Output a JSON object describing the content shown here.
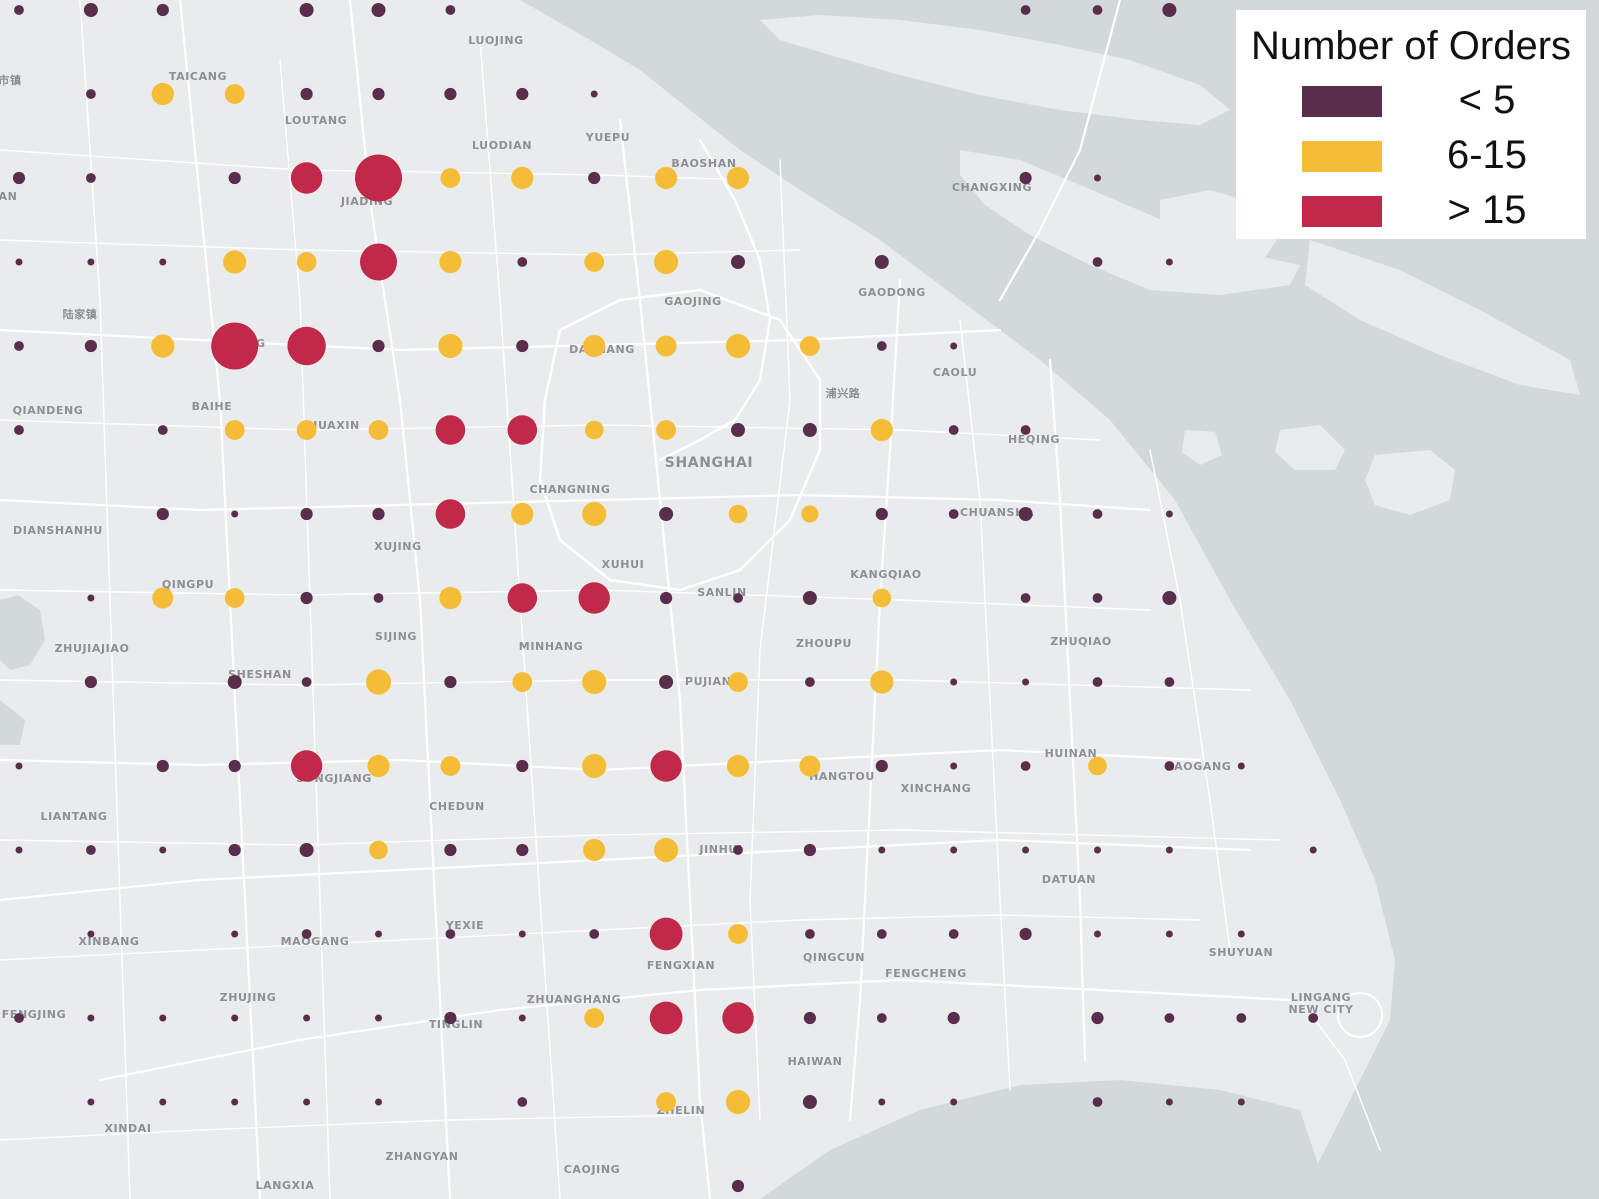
{
  "colors": {
    "land": "#e9ecec",
    "water": "#d3d9db",
    "road": "#ffffff",
    "label": "#8c9094",
    "low": "#5a2d4d",
    "mid": "#f5bd37",
    "high": "#c0294a"
  },
  "legend": {
    "title": "Number of Orders",
    "items": [
      {
        "label": "< 5",
        "color": "#5a2d4d"
      },
      {
        "label": "6-15",
        "color": "#f5bd37"
      },
      {
        "label": "> 15",
        "color": "#c0294a"
      }
    ]
  },
  "places": [
    "LUOJING",
    "TAICANG",
    "LOUTANG",
    "LUODIAN",
    "YUEPU",
    "BAOSHAN",
    "JIADING",
    "CHANGXING",
    "GAOJING",
    "GAODONG",
    "陆家镇",
    "ANTING",
    "DACHANG",
    "CAOLU",
    "浦兴路",
    "QIANDENG",
    "BAIHE",
    "HUAXIN",
    "SHANGHAI",
    "HEQING",
    "CHANGNING",
    "CHUANSHA",
    "DIANSHANHU",
    "XUJING",
    "XUHUI",
    "QINGPU",
    "SANLIN",
    "KANGQIAO",
    "SIJING",
    "MINHANG",
    "ZHUJIAJIAO",
    "ZHOUPU",
    "ZHUQIAO",
    "SHESHAN",
    "PUJIANG",
    "HUINAN",
    "LAOGANG",
    "SONGJIANG",
    "HANGTOU",
    "XINCHANG",
    "CHEDUN",
    "LIANTANG",
    "JINHUI",
    "DATUAN",
    "YEXIE",
    "XINBANG",
    "MAOGANG",
    "QINGCUN",
    "FENGXIAN",
    "FENGCHENG",
    "SHUYUAN",
    "ZHUJING",
    "ZHUANGHANG",
    "LINGANG",
    "NEW CITY",
    "FENGJING",
    "TINGLIN",
    "HAIWAN",
    "ZHELIN",
    "XINDAI",
    "ZHANGYAN",
    "CAOJING",
    "LANGXIA",
    "市镇",
    "AN"
  ],
  "order_grid": [
    {
      "col": 0,
      "row": 0,
      "level": "low",
      "orders": 2
    },
    {
      "col": 1,
      "row": 0,
      "level": "low",
      "orders": 4
    },
    {
      "col": 2,
      "row": 0,
      "level": "low",
      "orders": 3
    },
    {
      "col": 4,
      "row": 0,
      "level": "low",
      "orders": 4
    },
    {
      "col": 5,
      "row": 0,
      "level": "low",
      "orders": 4
    },
    {
      "col": 6,
      "row": 0,
      "level": "low",
      "orders": 2
    },
    {
      "col": 14,
      "row": 0,
      "level": "low",
      "orders": 2
    },
    {
      "col": 15,
      "row": 0,
      "level": "low",
      "orders": 2
    },
    {
      "col": 16,
      "row": 0,
      "level": "low",
      "orders": 4
    },
    {
      "col": 1,
      "row": 1,
      "level": "low",
      "orders": 2
    },
    {
      "col": 2,
      "row": 1,
      "level": "mid",
      "orders": 10
    },
    {
      "col": 3,
      "row": 1,
      "level": "mid",
      "orders": 8
    },
    {
      "col": 4,
      "row": 1,
      "level": "low",
      "orders": 3
    },
    {
      "col": 5,
      "row": 1,
      "level": "low",
      "orders": 3
    },
    {
      "col": 6,
      "row": 1,
      "level": "low",
      "orders": 3
    },
    {
      "col": 7,
      "row": 1,
      "level": "low",
      "orders": 3
    },
    {
      "col": 8,
      "row": 1,
      "level": "low",
      "orders": 1
    },
    {
      "col": 0,
      "row": 2,
      "level": "low",
      "orders": 3
    },
    {
      "col": 1,
      "row": 2,
      "level": "low",
      "orders": 2
    },
    {
      "col": 3,
      "row": 2,
      "level": "low",
      "orders": 3
    },
    {
      "col": 4,
      "row": 2,
      "level": "high",
      "orders": 20
    },
    {
      "col": 5,
      "row": 2,
      "level": "high",
      "orders": 45
    },
    {
      "col": 6,
      "row": 2,
      "level": "mid",
      "orders": 8
    },
    {
      "col": 7,
      "row": 2,
      "level": "mid",
      "orders": 10
    },
    {
      "col": 8,
      "row": 2,
      "level": "low",
      "orders": 3
    },
    {
      "col": 9,
      "row": 2,
      "level": "mid",
      "orders": 10
    },
    {
      "col": 10,
      "row": 2,
      "level": "mid",
      "orders": 10
    },
    {
      "col": 14,
      "row": 2,
      "level": "low",
      "orders": 3
    },
    {
      "col": 15,
      "row": 2,
      "level": "low",
      "orders": 1
    },
    {
      "col": 0,
      "row": 3,
      "level": "low",
      "orders": 1
    },
    {
      "col": 1,
      "row": 3,
      "level": "low",
      "orders": 1
    },
    {
      "col": 2,
      "row": 3,
      "level": "low",
      "orders": 1
    },
    {
      "col": 3,
      "row": 3,
      "level": "mid",
      "orders": 11
    },
    {
      "col": 4,
      "row": 3,
      "level": "mid",
      "orders": 8
    },
    {
      "col": 5,
      "row": 3,
      "level": "high",
      "orders": 28
    },
    {
      "col": 6,
      "row": 3,
      "level": "mid",
      "orders": 10
    },
    {
      "col": 7,
      "row": 3,
      "level": "low",
      "orders": 2
    },
    {
      "col": 8,
      "row": 3,
      "level": "mid",
      "orders": 8
    },
    {
      "col": 9,
      "row": 3,
      "level": "mid",
      "orders": 12
    },
    {
      "col": 10,
      "row": 3,
      "level": "low",
      "orders": 4
    },
    {
      "col": 12,
      "row": 3,
      "level": "low",
      "orders": 4
    },
    {
      "col": 15,
      "row": 3,
      "level": "low",
      "orders": 2
    },
    {
      "col": 16,
      "row": 3,
      "level": "low",
      "orders": 1
    },
    {
      "col": 0,
      "row": 4,
      "level": "low",
      "orders": 2
    },
    {
      "col": 1,
      "row": 4,
      "level": "low",
      "orders": 3
    },
    {
      "col": 2,
      "row": 4,
      "level": "mid",
      "orders": 11
    },
    {
      "col": 3,
      "row": 4,
      "level": "high",
      "orders": 45
    },
    {
      "col": 4,
      "row": 4,
      "level": "high",
      "orders": 30
    },
    {
      "col": 5,
      "row": 4,
      "level": "low",
      "orders": 3
    },
    {
      "col": 6,
      "row": 4,
      "level": "mid",
      "orders": 12
    },
    {
      "col": 7,
      "row": 4,
      "level": "low",
      "orders": 3
    },
    {
      "col": 8,
      "row": 4,
      "level": "mid",
      "orders": 10
    },
    {
      "col": 9,
      "row": 4,
      "level": "mid",
      "orders": 9
    },
    {
      "col": 10,
      "row": 4,
      "level": "mid",
      "orders": 12
    },
    {
      "col": 11,
      "row": 4,
      "level": "mid",
      "orders": 8
    },
    {
      "col": 12,
      "row": 4,
      "level": "low",
      "orders": 2
    },
    {
      "col": 13,
      "row": 4,
      "level": "low",
      "orders": 1
    },
    {
      "col": 0,
      "row": 5,
      "level": "low",
      "orders": 2
    },
    {
      "col": 2,
      "row": 5,
      "level": "low",
      "orders": 2
    },
    {
      "col": 3,
      "row": 5,
      "level": "mid",
      "orders": 8
    },
    {
      "col": 4,
      "row": 5,
      "level": "mid",
      "orders": 8
    },
    {
      "col": 5,
      "row": 5,
      "level": "mid",
      "orders": 8
    },
    {
      "col": 6,
      "row": 5,
      "level": "high",
      "orders": 18
    },
    {
      "col": 7,
      "row": 5,
      "level": "high",
      "orders": 18
    },
    {
      "col": 8,
      "row": 5,
      "level": "mid",
      "orders": 7
    },
    {
      "col": 9,
      "row": 5,
      "level": "mid",
      "orders": 8
    },
    {
      "col": 10,
      "row": 5,
      "level": "low",
      "orders": 4
    },
    {
      "col": 11,
      "row": 5,
      "level": "low",
      "orders": 4
    },
    {
      "col": 12,
      "row": 5,
      "level": "mid",
      "orders": 10
    },
    {
      "col": 13,
      "row": 5,
      "level": "low",
      "orders": 2
    },
    {
      "col": 14,
      "row": 5,
      "level": "low",
      "orders": 2
    },
    {
      "col": 2,
      "row": 6,
      "level": "low",
      "orders": 3
    },
    {
      "col": 3,
      "row": 6,
      "level": "low",
      "orders": 1
    },
    {
      "col": 4,
      "row": 6,
      "level": "low",
      "orders": 3
    },
    {
      "col": 5,
      "row": 6,
      "level": "low",
      "orders": 3
    },
    {
      "col": 6,
      "row": 6,
      "level": "high",
      "orders": 18
    },
    {
      "col": 7,
      "row": 6,
      "level": "mid",
      "orders": 10
    },
    {
      "col": 8,
      "row": 6,
      "level": "mid",
      "orders": 12
    },
    {
      "col": 9,
      "row": 6,
      "level": "low",
      "orders": 4
    },
    {
      "col": 10,
      "row": 6,
      "level": "mid",
      "orders": 7
    },
    {
      "col": 11,
      "row": 6,
      "level": "mid",
      "orders": 6
    },
    {
      "col": 12,
      "row": 6,
      "level": "low",
      "orders": 3
    },
    {
      "col": 13,
      "row": 6,
      "level": "low",
      "orders": 2
    },
    {
      "col": 14,
      "row": 6,
      "level": "low",
      "orders": 4
    },
    {
      "col": 15,
      "row": 6,
      "level": "low",
      "orders": 2
    },
    {
      "col": 16,
      "row": 6,
      "level": "low",
      "orders": 1
    },
    {
      "col": 1,
      "row": 7,
      "level": "low",
      "orders": 1
    },
    {
      "col": 2,
      "row": 7,
      "level": "mid",
      "orders": 9
    },
    {
      "col": 3,
      "row": 7,
      "level": "mid",
      "orders": 8
    },
    {
      "col": 4,
      "row": 7,
      "level": "low",
      "orders": 3
    },
    {
      "col": 5,
      "row": 7,
      "level": "low",
      "orders": 2
    },
    {
      "col": 6,
      "row": 7,
      "level": "mid",
      "orders": 10
    },
    {
      "col": 7,
      "row": 7,
      "level": "high",
      "orders": 18
    },
    {
      "col": 8,
      "row": 7,
      "level": "high",
      "orders": 20
    },
    {
      "col": 9,
      "row": 7,
      "level": "low",
      "orders": 3
    },
    {
      "col": 10,
      "row": 7,
      "level": "low",
      "orders": 2
    },
    {
      "col": 11,
      "row": 7,
      "level": "low",
      "orders": 4
    },
    {
      "col": 12,
      "row": 7,
      "level": "mid",
      "orders": 7
    },
    {
      "col": 14,
      "row": 7,
      "level": "low",
      "orders": 2
    },
    {
      "col": 15,
      "row": 7,
      "level": "low",
      "orders": 2
    },
    {
      "col": 16,
      "row": 7,
      "level": "low",
      "orders": 4
    },
    {
      "col": 1,
      "row": 8,
      "level": "low",
      "orders": 3
    },
    {
      "col": 3,
      "row": 8,
      "level": "low",
      "orders": 4
    },
    {
      "col": 4,
      "row": 8,
      "level": "low",
      "orders": 2
    },
    {
      "col": 5,
      "row": 8,
      "level": "mid",
      "orders": 13
    },
    {
      "col": 6,
      "row": 8,
      "level": "low",
      "orders": 3
    },
    {
      "col": 7,
      "row": 8,
      "level": "mid",
      "orders": 8
    },
    {
      "col": 8,
      "row": 8,
      "level": "mid",
      "orders": 12
    },
    {
      "col": 9,
      "row": 8,
      "level": "low",
      "orders": 4
    },
    {
      "col": 10,
      "row": 8,
      "level": "mid",
      "orders": 8
    },
    {
      "col": 11,
      "row": 8,
      "level": "low",
      "orders": 2
    },
    {
      "col": 12,
      "row": 8,
      "level": "mid",
      "orders": 11
    },
    {
      "col": 13,
      "row": 8,
      "level": "low",
      "orders": 1
    },
    {
      "col": 14,
      "row": 8,
      "level": "low",
      "orders": 1
    },
    {
      "col": 15,
      "row": 8,
      "level": "low",
      "orders": 2
    },
    {
      "col": 16,
      "row": 8,
      "level": "low",
      "orders": 2
    },
    {
      "col": 0,
      "row": 9,
      "level": "low",
      "orders": 1
    },
    {
      "col": 2,
      "row": 9,
      "level": "low",
      "orders": 3
    },
    {
      "col": 3,
      "row": 9,
      "level": "low",
      "orders": 3
    },
    {
      "col": 4,
      "row": 9,
      "level": "high",
      "orders": 20
    },
    {
      "col": 5,
      "row": 9,
      "level": "mid",
      "orders": 10
    },
    {
      "col": 6,
      "row": 9,
      "level": "mid",
      "orders": 8
    },
    {
      "col": 7,
      "row": 9,
      "level": "low",
      "orders": 3
    },
    {
      "col": 8,
      "row": 9,
      "level": "mid",
      "orders": 12
    },
    {
      "col": 9,
      "row": 9,
      "level": "high",
      "orders": 20
    },
    {
      "col": 10,
      "row": 9,
      "level": "mid",
      "orders": 10
    },
    {
      "col": 11,
      "row": 9,
      "level": "mid",
      "orders": 9
    },
    {
      "col": 12,
      "row": 9,
      "level": "low",
      "orders": 3
    },
    {
      "col": 13,
      "row": 9,
      "level": "low",
      "orders": 1
    },
    {
      "col": 14,
      "row": 9,
      "level": "low",
      "orders": 2
    },
    {
      "col": 15,
      "row": 9,
      "level": "mid",
      "orders": 7
    },
    {
      "col": 16,
      "row": 9,
      "level": "low",
      "orders": 2
    },
    {
      "col": 17,
      "row": 9,
      "level": "low",
      "orders": 1
    },
    {
      "col": 0,
      "row": 10,
      "level": "low",
      "orders": 1
    },
    {
      "col": 1,
      "row": 10,
      "level": "low",
      "orders": 2
    },
    {
      "col": 2,
      "row": 10,
      "level": "low",
      "orders": 1
    },
    {
      "col": 3,
      "row": 10,
      "level": "low",
      "orders": 3
    },
    {
      "col": 4,
      "row": 10,
      "level": "low",
      "orders": 4
    },
    {
      "col": 5,
      "row": 10,
      "level": "mid",
      "orders": 7
    },
    {
      "col": 6,
      "row": 10,
      "level": "low",
      "orders": 3
    },
    {
      "col": 7,
      "row": 10,
      "level": "low",
      "orders": 3
    },
    {
      "col": 8,
      "row": 10,
      "level": "mid",
      "orders": 10
    },
    {
      "col": 9,
      "row": 10,
      "level": "mid",
      "orders": 12
    },
    {
      "col": 10,
      "row": 10,
      "level": "low",
      "orders": 2
    },
    {
      "col": 11,
      "row": 10,
      "level": "low",
      "orders": 3
    },
    {
      "col": 12,
      "row": 10,
      "level": "low",
      "orders": 1
    },
    {
      "col": 13,
      "row": 10,
      "level": "low",
      "orders": 1
    },
    {
      "col": 14,
      "row": 10,
      "level": "low",
      "orders": 1
    },
    {
      "col": 15,
      "row": 10,
      "level": "low",
      "orders": 1
    },
    {
      "col": 16,
      "row": 10,
      "level": "low",
      "orders": 1
    },
    {
      "col": 18,
      "row": 10,
      "level": "low",
      "orders": 1
    },
    {
      "col": 1,
      "row": 11,
      "level": "low",
      "orders": 1
    },
    {
      "col": 3,
      "row": 11,
      "level": "low",
      "orders": 1
    },
    {
      "col": 4,
      "row": 11,
      "level": "low",
      "orders": 2
    },
    {
      "col": 5,
      "row": 11,
      "level": "low",
      "orders": 1
    },
    {
      "col": 6,
      "row": 11,
      "level": "low",
      "orders": 2
    },
    {
      "col": 7,
      "row": 11,
      "level": "low",
      "orders": 1
    },
    {
      "col": 8,
      "row": 11,
      "level": "low",
      "orders": 2
    },
    {
      "col": 9,
      "row": 11,
      "level": "high",
      "orders": 22
    },
    {
      "col": 10,
      "row": 11,
      "level": "mid",
      "orders": 8
    },
    {
      "col": 11,
      "row": 11,
      "level": "low",
      "orders": 2
    },
    {
      "col": 12,
      "row": 11,
      "level": "low",
      "orders": 2
    },
    {
      "col": 13,
      "row": 11,
      "level": "low",
      "orders": 2
    },
    {
      "col": 14,
      "row": 11,
      "level": "low",
      "orders": 3
    },
    {
      "col": 15,
      "row": 11,
      "level": "low",
      "orders": 1
    },
    {
      "col": 16,
      "row": 11,
      "level": "low",
      "orders": 1
    },
    {
      "col": 17,
      "row": 11,
      "level": "low",
      "orders": 1
    },
    {
      "col": 0,
      "row": 12,
      "level": "low",
      "orders": 2
    },
    {
      "col": 1,
      "row": 12,
      "level": "low",
      "orders": 1
    },
    {
      "col": 2,
      "row": 12,
      "level": "low",
      "orders": 1
    },
    {
      "col": 3,
      "row": 12,
      "level": "low",
      "orders": 1
    },
    {
      "col": 4,
      "row": 12,
      "level": "low",
      "orders": 1
    },
    {
      "col": 5,
      "row": 12,
      "level": "low",
      "orders": 1
    },
    {
      "col": 6,
      "row": 12,
      "level": "low",
      "orders": 3
    },
    {
      "col": 7,
      "row": 12,
      "level": "low",
      "orders": 1
    },
    {
      "col": 8,
      "row": 12,
      "level": "mid",
      "orders": 8
    },
    {
      "col": 9,
      "row": 12,
      "level": "high",
      "orders": 22
    },
    {
      "col": 10,
      "row": 12,
      "level": "high",
      "orders": 20
    },
    {
      "col": 11,
      "row": 12,
      "level": "low",
      "orders": 3
    },
    {
      "col": 12,
      "row": 12,
      "level": "low",
      "orders": 2
    },
    {
      "col": 13,
      "row": 12,
      "level": "low",
      "orders": 3
    },
    {
      "col": 15,
      "row": 12,
      "level": "low",
      "orders": 3
    },
    {
      "col": 16,
      "row": 12,
      "level": "low",
      "orders": 2
    },
    {
      "col": 17,
      "row": 12,
      "level": "low",
      "orders": 2
    },
    {
      "col": 18,
      "row": 12,
      "level": "low",
      "orders": 2
    },
    {
      "col": 1,
      "row": 13,
      "level": "low",
      "orders": 1
    },
    {
      "col": 2,
      "row": 13,
      "level": "low",
      "orders": 1
    },
    {
      "col": 3,
      "row": 13,
      "level": "low",
      "orders": 1
    },
    {
      "col": 4,
      "row": 13,
      "level": "low",
      "orders": 1
    },
    {
      "col": 5,
      "row": 13,
      "level": "low",
      "orders": 1
    },
    {
      "col": 7,
      "row": 13,
      "level": "low",
      "orders": 2
    },
    {
      "col": 9,
      "row": 13,
      "level": "mid",
      "orders": 8
    },
    {
      "col": 10,
      "row": 13,
      "level": "mid",
      "orders": 12
    },
    {
      "col": 11,
      "row": 13,
      "level": "low",
      "orders": 4
    },
    {
      "col": 12,
      "row": 13,
      "level": "low",
      "orders": 1
    },
    {
      "col": 13,
      "row": 13,
      "level": "low",
      "orders": 1
    },
    {
      "col": 15,
      "row": 13,
      "level": "low",
      "orders": 2
    },
    {
      "col": 16,
      "row": 13,
      "level": "low",
      "orders": 1
    },
    {
      "col": 17,
      "row": 13,
      "level": "low",
      "orders": 1
    },
    {
      "col": 10,
      "row": 14,
      "level": "low",
      "orders": 3
    }
  ]
}
